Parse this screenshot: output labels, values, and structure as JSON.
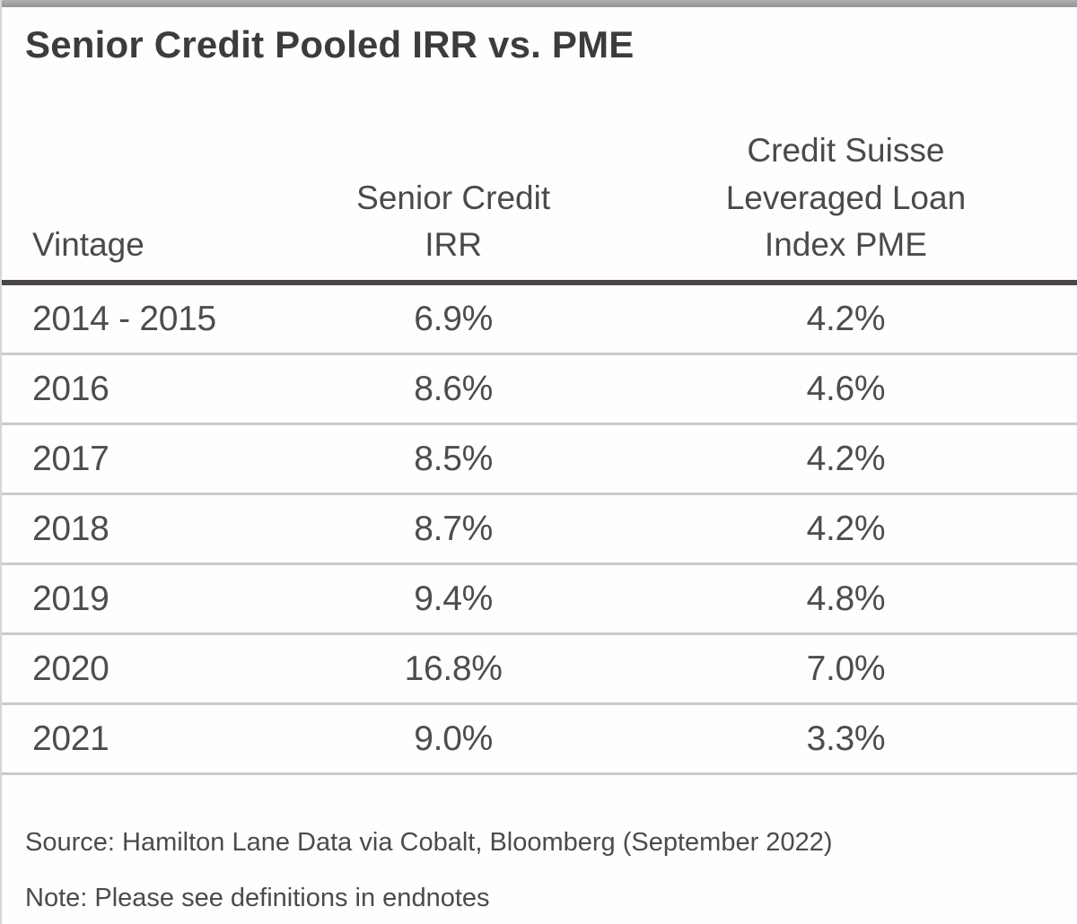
{
  "page": {
    "title": "Senior Credit Pooled IRR vs. PME"
  },
  "table": {
    "columns": [
      {
        "label": "Vintage"
      },
      {
        "label": "Senior Credit\nIRR"
      },
      {
        "label": "Credit Suisse\nLeveraged Loan\nIndex PME"
      }
    ],
    "rows": [
      {
        "vintage": "2014 - 2015",
        "irr": "6.9%",
        "pme": "4.2%"
      },
      {
        "vintage": "2016",
        "irr": "8.6%",
        "pme": "4.6%"
      },
      {
        "vintage": "2017",
        "irr": "8.5%",
        "pme": "4.2%"
      },
      {
        "vintage": "2018",
        "irr": "8.7%",
        "pme": "4.2%"
      },
      {
        "vintage": "2019",
        "irr": "9.4%",
        "pme": "4.8%"
      },
      {
        "vintage": "2020",
        "irr": "16.8%",
        "pme": "7.0%"
      },
      {
        "vintage": "2021",
        "irr": "9.0%",
        "pme": "3.3%"
      }
    ]
  },
  "footer": {
    "source": "Source: Hamilton Lane Data via Cobalt, Bloomberg (September 2022)",
    "note": "Note: Please see definitions in endnotes"
  },
  "colors": {
    "title_text": "#3e3b3b",
    "body_text": "#4d4d4d",
    "header_rule": "#4b4545",
    "row_rule": "#cbcbcb",
    "top_bar": "#a4a1a1",
    "left_border": "#d6d4d4"
  },
  "chart_data": {
    "type": "table",
    "title": "Senior Credit Pooled IRR vs. PME",
    "columns": [
      "Vintage",
      "Senior Credit IRR",
      "Credit Suisse Leveraged Loan Index PME"
    ],
    "rows": [
      [
        "2014 - 2015",
        "6.9%",
        "4.2%"
      ],
      [
        "2016",
        "8.6%",
        "4.6%"
      ],
      [
        "2017",
        "8.5%",
        "4.2%"
      ],
      [
        "2018",
        "8.7%",
        "4.2%"
      ],
      [
        "2019",
        "9.4%",
        "4.8%"
      ],
      [
        "2020",
        "16.8%",
        "7.0%"
      ],
      [
        "2021",
        "9.0%",
        "3.3%"
      ]
    ],
    "irr_values_pct": [
      6.9,
      8.6,
      8.5,
      8.7,
      9.4,
      16.8,
      9.0
    ],
    "pme_values_pct": [
      4.2,
      4.6,
      4.2,
      4.2,
      4.8,
      7.0,
      3.3
    ],
    "source": "Source: Hamilton Lane Data via Cobalt, Bloomberg (September 2022)",
    "note": "Note: Please see definitions in endnotes"
  }
}
